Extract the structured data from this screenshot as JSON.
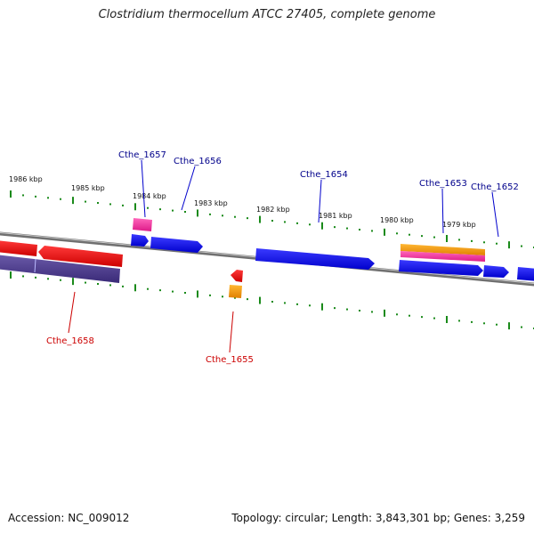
{
  "header": {
    "title": "Clostridium thermocellum ATCC 27405, complete genome"
  },
  "footer": {
    "accession": "Accession: NC_009012",
    "topology": "Topology: circular; Length: 3,843,301 bp; Genes: 3,259"
  },
  "scale": {
    "labels": [
      "1986 kbp",
      "1985 kbp",
      "1984 kbp",
      "1983 kbp",
      "1982 kbp",
      "1981 kbp",
      "1980 kbp",
      "1979 kbp"
    ]
  },
  "genes": {
    "forward_labels": [
      "Cthe_1657",
      "Cthe_1656",
      "Cthe_1654",
      "Cthe_1653",
      "Cthe_1652"
    ],
    "reverse_labels": [
      "Cthe_1658",
      "Cthe_1655"
    ]
  },
  "colors": {
    "forward_gene": "#0000ff",
    "reverse_gene": "#ff0000",
    "forward_label": "#00008b",
    "reverse_label": "#cc0000",
    "tick": "#1a8a1a",
    "backbone": "#8a8a8a",
    "feature_pink": "#ff2a9a",
    "feature_orange": "#ff9900",
    "feature_purple": "#4a3a8a"
  }
}
